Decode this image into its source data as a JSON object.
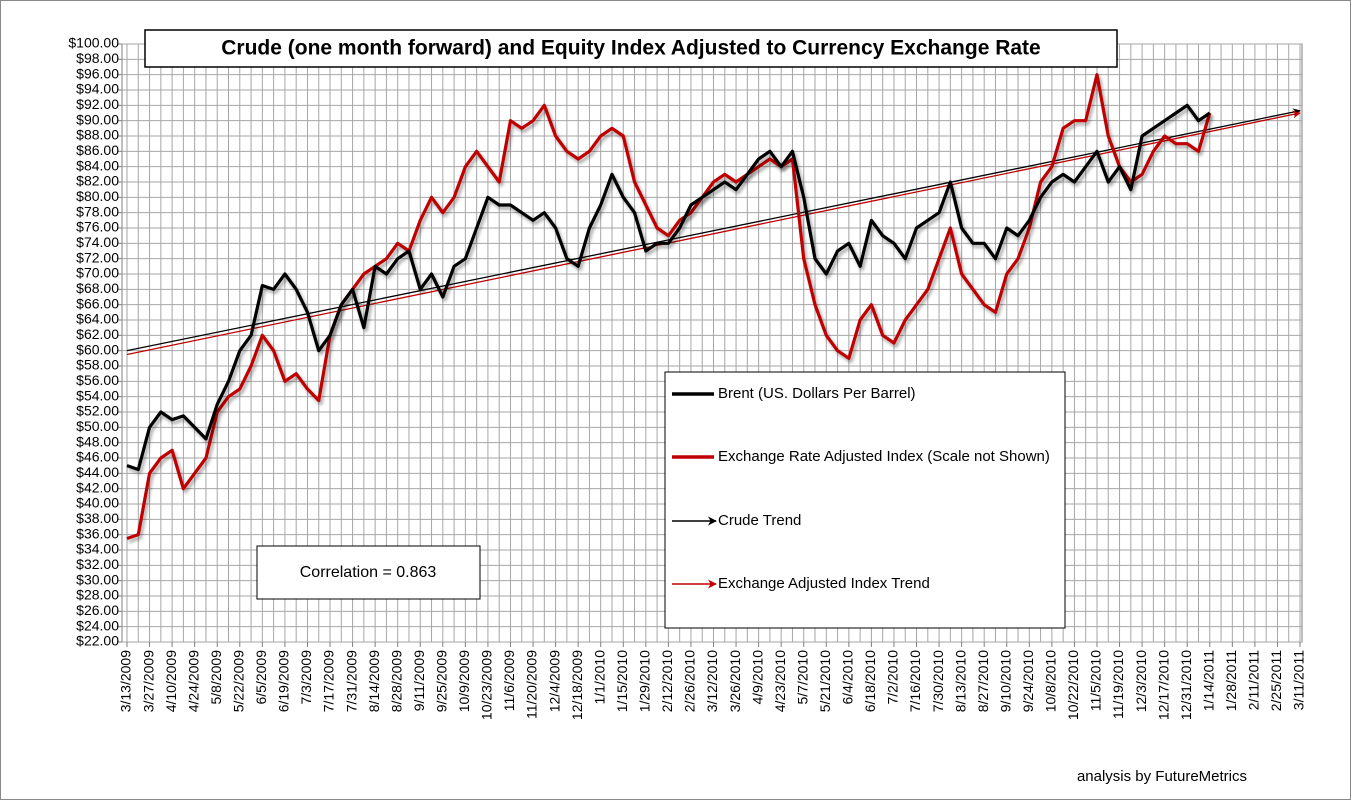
{
  "chart_data": {
    "type": "line",
    "title": "Crude (one month forward) and Equity Index Adjusted to Currency Exchange Rate",
    "annotations": {
      "correlation": "Correlation = 0.863",
      "credit": "analysis by FutureMetrics"
    },
    "categories": [
      "3/13/2009",
      null,
      "3/27/2009",
      null,
      "4/10/2009",
      null,
      "4/24/2009",
      null,
      "5/8/2009",
      null,
      "5/22/2009",
      null,
      "6/5/2009",
      null,
      "6/19/2009",
      null,
      "7/3/2009",
      null,
      "7/17/2009",
      null,
      "7/31/2009",
      null,
      "8/14/2009",
      null,
      "8/28/2009",
      null,
      "9/11/2009",
      null,
      "9/25/2009",
      null,
      "10/9/2009",
      null,
      "10/23/2009",
      null,
      "11/6/2009",
      null,
      "11/20/2009",
      null,
      "12/4/2009",
      null,
      "12/18/2009",
      null,
      "1/1/2010",
      null,
      "1/15/2010",
      null,
      "1/29/2010",
      null,
      "2/12/2010",
      null,
      "2/26/2010",
      null,
      "3/12/2010",
      null,
      "3/26/2010",
      null,
      "4/9/2010",
      null,
      "4/23/2010",
      null,
      "5/7/2010",
      null,
      "5/21/2010",
      null,
      "6/4/2010",
      null,
      "6/18/2010",
      null,
      "7/2/2010",
      null,
      "7/16/2010",
      null,
      "7/30/2010",
      null,
      "8/13/2010",
      null,
      "8/27/2010",
      null,
      "9/10/2010",
      null,
      "9/24/2010",
      null,
      "10/8/2010",
      null,
      "10/22/2010",
      null,
      "11/5/2010",
      null,
      "11/19/2010",
      null,
      "12/3/2010",
      null,
      "12/17/2010",
      null,
      "12/31/2010",
      null,
      "1/14/2011",
      null,
      "1/28/2011",
      null,
      "2/11/2011",
      null,
      "2/25/2011",
      null,
      "3/11/2011"
    ],
    "series": [
      {
        "name": "Brent (US. Dollars Per Barrel)",
        "color": "#000000",
        "values": [
          45,
          44.5,
          50,
          52,
          51,
          51.5,
          50,
          48.5,
          53,
          56,
          60,
          62,
          68.5,
          68,
          70,
          68,
          65,
          60,
          62,
          66,
          68,
          63,
          71,
          70,
          72,
          73,
          68,
          70,
          67,
          71,
          72,
          76,
          80,
          79,
          79,
          78,
          77,
          78,
          76,
          72,
          71,
          76,
          79,
          83,
          80,
          78,
          73,
          74,
          74,
          76,
          79,
          80,
          81,
          82,
          81,
          83,
          85,
          86,
          84,
          86,
          80,
          72,
          70,
          73,
          74,
          71,
          77,
          75,
          74,
          72,
          76,
          77,
          78,
          82,
          76,
          74,
          74,
          72,
          76,
          75,
          77,
          80,
          82,
          83,
          82,
          84,
          86,
          82,
          84,
          81,
          88,
          89,
          90,
          91,
          92,
          90,
          91,
          null,
          null,
          null,
          null,
          null,
          null,
          null,
          null
        ]
      },
      {
        "name": "Exchange Rate Adjusted Index (Scale not Shown)",
        "color": "#c00000",
        "values": [
          35.5,
          36,
          44,
          46,
          47,
          42,
          44,
          46,
          52,
          54,
          55,
          58,
          62,
          60,
          56,
          57,
          55,
          53.5,
          62,
          66,
          68,
          70,
          71,
          72,
          74,
          73,
          77,
          80,
          78,
          80,
          84,
          86,
          84,
          82,
          90,
          89,
          90,
          92,
          88,
          86,
          85,
          86,
          88,
          89,
          88,
          82,
          79,
          76,
          75,
          77,
          78,
          80,
          82,
          83,
          82,
          83,
          84,
          85,
          84,
          85,
          72,
          66,
          62,
          60,
          59,
          64,
          66,
          62,
          61,
          64,
          66,
          68,
          72,
          76,
          70,
          68,
          66,
          65,
          70,
          72,
          76,
          82,
          84,
          89,
          90,
          90,
          96,
          88,
          84,
          82,
          83,
          86,
          88,
          87,
          87,
          86,
          91,
          null,
          null,
          null,
          null,
          null,
          null,
          null,
          null
        ]
      }
    ],
    "trends": [
      {
        "name": "Crude Trend",
        "color": "#000000",
        "values": [
          60,
          91.3
        ]
      },
      {
        "name": "Exchange Adjusted Index Trend",
        "color": "#c00000",
        "values": [
          59.5,
          91
        ]
      }
    ],
    "ylim": [
      22,
      100
    ],
    "yticks": [
      {
        "value": 22,
        "label": "$22.00"
      },
      {
        "value": 24,
        "label": "$24.00"
      },
      {
        "value": 26,
        "label": "$26.00"
      },
      {
        "value": 28,
        "label": "$28.00"
      },
      {
        "value": 30,
        "label": "$30.00"
      },
      {
        "value": 32,
        "label": "$32.00"
      },
      {
        "value": 34,
        "label": "$34.00"
      },
      {
        "value": 36,
        "label": "$36.00"
      },
      {
        "value": 38,
        "label": "$38.00"
      },
      {
        "value": 40,
        "label": "$40.00"
      },
      {
        "value": 42,
        "label": "$42.00"
      },
      {
        "value": 44,
        "label": "$44.00"
      },
      {
        "value": 46,
        "label": "$46.00"
      },
      {
        "value": 48,
        "label": "$48.00"
      },
      {
        "value": 50,
        "label": "$50.00"
      },
      {
        "value": 52,
        "label": "$52.00"
      },
      {
        "value": 54,
        "label": "$54.00"
      },
      {
        "value": 56,
        "label": "$56.00"
      },
      {
        "value": 58,
        "label": "$58.00"
      },
      {
        "value": 60,
        "label": "$60.00"
      },
      {
        "value": 62,
        "label": "$62.00"
      },
      {
        "value": 64,
        "label": "$64.00"
      },
      {
        "value": 66,
        "label": "$66.00"
      },
      {
        "value": 68,
        "label": "$68.00"
      },
      {
        "value": 70,
        "label": "$70.00"
      },
      {
        "value": 72,
        "label": "$72.00"
      },
      {
        "value": 74,
        "label": "$74.00"
      },
      {
        "value": 76,
        "label": "$76.00"
      },
      {
        "value": 78,
        "label": "$78.00"
      },
      {
        "value": 80,
        "label": "$80.00"
      },
      {
        "value": 82,
        "label": "$82.00"
      },
      {
        "value": 84,
        "label": "$84.00"
      },
      {
        "value": 86,
        "label": "$86.00"
      },
      {
        "value": 88,
        "label": "$88.00"
      },
      {
        "value": 90,
        "label": "$90.00"
      },
      {
        "value": 92,
        "label": "$92.00"
      },
      {
        "value": 94,
        "label": "$94.00"
      },
      {
        "value": 96,
        "label": "$96.00"
      },
      {
        "value": 98,
        "label": "$98.00"
      },
      {
        "value": 100,
        "label": "$100.00"
      }
    ],
    "grid": true
  }
}
